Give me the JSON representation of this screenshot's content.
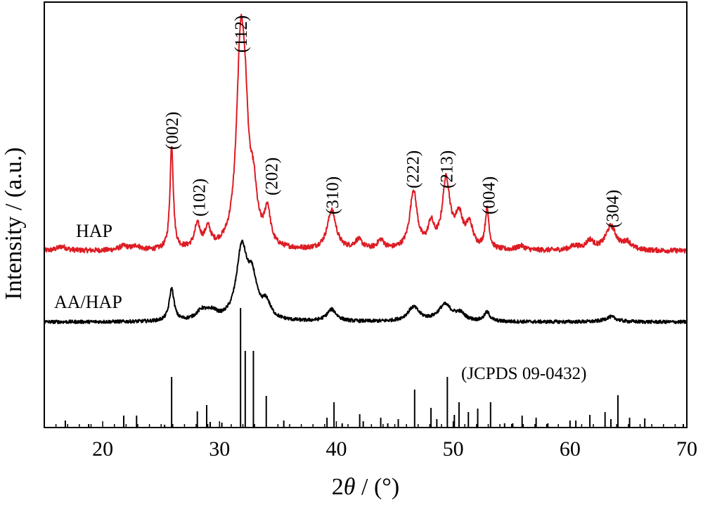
{
  "chart_data": {
    "type": "line",
    "xlabel_prefix": "2",
    "xlabel_theta": "θ",
    "xlabel_suffix": " / (°)",
    "ylabel": "Intensity / (a.u.)",
    "xlim": [
      15,
      70
    ],
    "x_ticks": [
      20,
      30,
      40,
      50,
      60,
      70
    ],
    "y_ticks_shown": false,
    "series": [
      {
        "name": "HAP",
        "color": "#dd1c24",
        "baseline": 0.92,
        "noise": 0.06,
        "peaks": [
          {
            "x": 16.5,
            "h": 0.1,
            "w": 0.5
          },
          {
            "x": 21.8,
            "h": 0.1,
            "w": 0.5
          },
          {
            "x": 22.9,
            "h": 0.1,
            "w": 0.35
          },
          {
            "x": 25.9,
            "h": 2.52,
            "w": 0.17
          },
          {
            "x": 28.1,
            "h": 0.55,
            "w": 0.3
          },
          {
            "x": 29.0,
            "h": 0.45,
            "w": 0.3
          },
          {
            "x": 31.8,
            "h": 4.55,
            "w": 0.42
          },
          {
            "x": 32.2,
            "h": 2.0,
            "w": 0.35
          },
          {
            "x": 32.9,
            "h": 1.15,
            "w": 0.38
          },
          {
            "x": 34.1,
            "h": 0.85,
            "w": 0.3
          },
          {
            "x": 39.6,
            "h": 0.95,
            "w": 0.45
          },
          {
            "x": 41.9,
            "h": 0.22,
            "w": 0.4
          },
          {
            "x": 43.8,
            "h": 0.22,
            "w": 0.35
          },
          {
            "x": 46.6,
            "h": 1.4,
            "w": 0.38
          },
          {
            "x": 48.1,
            "h": 0.55,
            "w": 0.3
          },
          {
            "x": 49.4,
            "h": 1.65,
            "w": 0.4
          },
          {
            "x": 50.5,
            "h": 0.75,
            "w": 0.4
          },
          {
            "x": 51.4,
            "h": 0.55,
            "w": 0.35
          },
          {
            "x": 52.9,
            "h": 0.95,
            "w": 0.2
          },
          {
            "x": 55.8,
            "h": 0.1,
            "w": 0.4
          },
          {
            "x": 60.4,
            "h": 0.1,
            "w": 0.5
          },
          {
            "x": 61.7,
            "h": 0.22,
            "w": 0.4
          },
          {
            "x": 63.5,
            "h": 0.58,
            "w": 0.55
          },
          {
            "x": 64.9,
            "h": 0.18,
            "w": 0.4
          }
        ]
      },
      {
        "name": "AA/HAP",
        "color": "#000000",
        "baseline": 0.0,
        "noise": 0.06,
        "peaks": [
          {
            "x": 25.9,
            "h": 1.15,
            "w": 0.25
          },
          {
            "x": 28.5,
            "h": 0.35,
            "w": 0.6
          },
          {
            "x": 29.4,
            "h": 0.25,
            "w": 0.5
          },
          {
            "x": 31.9,
            "h": 2.5,
            "w": 0.55
          },
          {
            "x": 32.8,
            "h": 1.3,
            "w": 0.5
          },
          {
            "x": 34.0,
            "h": 0.55,
            "w": 0.45
          },
          {
            "x": 39.6,
            "h": 0.42,
            "w": 0.5
          },
          {
            "x": 46.6,
            "h": 0.5,
            "w": 0.6
          },
          {
            "x": 49.3,
            "h": 0.58,
            "w": 0.7
          },
          {
            "x": 50.6,
            "h": 0.25,
            "w": 0.5
          },
          {
            "x": 52.9,
            "h": 0.32,
            "w": 0.3
          },
          {
            "x": 63.5,
            "h": 0.18,
            "w": 0.6
          }
        ]
      }
    ],
    "peak_labels": [
      {
        "text": "(002)",
        "x": 25.9
      },
      {
        "text": "(102)",
        "x": 28.2
      },
      {
        "text": "(112)",
        "x": 31.8
      },
      {
        "text": "(202)",
        "x": 34.4
      },
      {
        "text": "(310)",
        "x": 39.6
      },
      {
        "text": "(222)",
        "x": 46.5
      },
      {
        "text": "(213)",
        "x": 49.4
      },
      {
        "text": "(004)",
        "x": 53.0
      },
      {
        "text": "(304)",
        "x": 63.6
      }
    ],
    "reference": {
      "label": "(JCPDS 09-0432)",
      "lines": [
        {
          "x": 16.8,
          "h": 10
        },
        {
          "x": 18.8,
          "h": 5
        },
        {
          "x": 21.8,
          "h": 17
        },
        {
          "x": 22.9,
          "h": 17
        },
        {
          "x": 25.3,
          "h": 4
        },
        {
          "x": 25.9,
          "h": 72
        },
        {
          "x": 28.1,
          "h": 23
        },
        {
          "x": 28.9,
          "h": 32
        },
        {
          "x": 29.2,
          "h": 8
        },
        {
          "x": 30.2,
          "h": 7
        },
        {
          "x": 31.8,
          "h": 170
        },
        {
          "x": 32.2,
          "h": 109
        },
        {
          "x": 32.9,
          "h": 109
        },
        {
          "x": 34.0,
          "h": 45
        },
        {
          "x": 35.5,
          "h": 10
        },
        {
          "x": 39.2,
          "h": 14
        },
        {
          "x": 39.8,
          "h": 36
        },
        {
          "x": 40.5,
          "h": 6
        },
        {
          "x": 42.0,
          "h": 19
        },
        {
          "x": 42.3,
          "h": 9
        },
        {
          "x": 43.8,
          "h": 14
        },
        {
          "x": 44.4,
          "h": 6
        },
        {
          "x": 45.3,
          "h": 12
        },
        {
          "x": 46.7,
          "h": 54
        },
        {
          "x": 48.1,
          "h": 28
        },
        {
          "x": 48.6,
          "h": 12
        },
        {
          "x": 49.5,
          "h": 72
        },
        {
          "x": 50.1,
          "h": 18
        },
        {
          "x": 50.5,
          "h": 36
        },
        {
          "x": 51.3,
          "h": 22
        },
        {
          "x": 52.1,
          "h": 27
        },
        {
          "x": 53.2,
          "h": 36
        },
        {
          "x": 54.4,
          "h": 6
        },
        {
          "x": 55.1,
          "h": 6
        },
        {
          "x": 55.9,
          "h": 17
        },
        {
          "x": 57.1,
          "h": 14
        },
        {
          "x": 58.1,
          "h": 6
        },
        {
          "x": 60.0,
          "h": 10
        },
        {
          "x": 60.5,
          "h": 10
        },
        {
          "x": 61.7,
          "h": 18
        },
        {
          "x": 63.0,
          "h": 22
        },
        {
          "x": 63.5,
          "h": 12
        },
        {
          "x": 64.1,
          "h": 46
        },
        {
          "x": 65.1,
          "h": 14
        },
        {
          "x": 66.4,
          "h": 13
        },
        {
          "x": 69.7,
          "h": 5
        }
      ]
    }
  }
}
